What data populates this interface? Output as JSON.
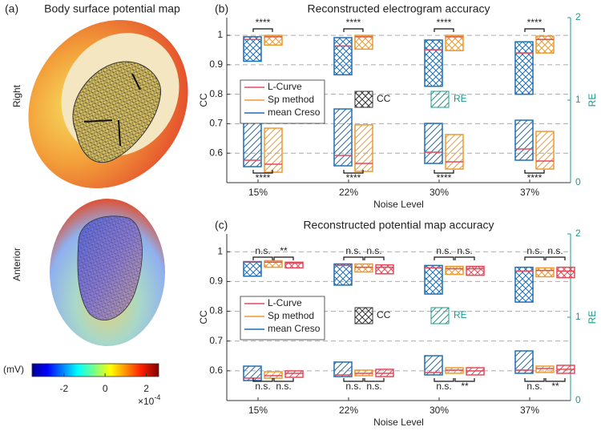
{
  "panel_a": {
    "label": "(a)",
    "title": "Body surface potential map",
    "views": [
      "Right",
      "Anterior"
    ],
    "colorbar": {
      "unit": "(mV)",
      "lim": [
        -3.55,
        2.6
      ],
      "ticks": [
        -2,
        0,
        2
      ],
      "exponent_base": "×10",
      "exponent": "-4"
    }
  },
  "chart_data": [
    {
      "type": "box",
      "label": "(b)",
      "title": "Reconstructed electrogram accuracy",
      "xlabel": "Noise Level",
      "ylabel": "CC",
      "y2label": "RE",
      "categories": [
        "15%",
        "22%",
        "30%",
        "37%"
      ],
      "ylim": [
        0.5,
        1.06
      ],
      "yticks": [
        0.6,
        0.7,
        0.8,
        0.9,
        1
      ],
      "y2lim": [
        0,
        2
      ],
      "y2ticks": [
        0,
        1,
        2
      ],
      "grid": true,
      "hatch_legend": [
        "CC",
        "RE"
      ],
      "series": [
        {
          "name": "L-Curve",
          "color": "#e8485a"
        },
        {
          "name": "Sp method",
          "color": "#ee9a2e",
          "cc_low": [
            0.967,
            0.953,
            0.948,
            0.94
          ],
          "cc_high": [
            1.0,
            1.0,
            1.0,
            0.997
          ],
          "cc_mid": [
            0.995,
            0.995,
            0.995,
            0.986
          ],
          "re_low": [
            0.126,
            0.136,
            0.165,
            0.165
          ],
          "re_high": [
            0.66,
            0.7,
            0.583,
            0.621
          ],
          "re_mid": [
            0.223,
            0.233,
            0.252,
            0.262
          ]
        },
        {
          "name": "mean Creso",
          "color": "#1f6fb5",
          "cc_low": [
            0.912,
            0.866,
            0.827,
            0.8
          ],
          "cc_high": [
            0.995,
            0.992,
            0.984,
            0.978
          ],
          "cc_mid": [
            0.986,
            0.964,
            0.951,
            0.94
          ],
          "re_low": [
            0.194,
            0.204,
            0.233,
            0.272
          ],
          "re_high": [
            0.806,
            0.893,
            0.718,
            0.757
          ],
          "re_mid": [
            0.272,
            0.33,
            0.369,
            0.408
          ]
        }
      ],
      "sig_upper": [
        [
          "****"
        ],
        [
          "****"
        ],
        [
          "****"
        ],
        [
          "****"
        ]
      ],
      "sig_lower": [
        [
          "****"
        ],
        [
          "****"
        ],
        [
          "****"
        ],
        [
          "****"
        ]
      ]
    },
    {
      "type": "box",
      "label": "(c)",
      "title": "Reconstructed potential map accuracy",
      "xlabel": "Noise Level",
      "ylabel": "CC",
      "y2label": "RE",
      "categories": [
        "15%",
        "22%",
        "30%",
        "37%"
      ],
      "ylim": [
        0.5,
        1.06
      ],
      "yticks": [
        0.6,
        0.7,
        0.8,
        0.9,
        1
      ],
      "y2lim": [
        0,
        2
      ],
      "y2ticks": [
        0,
        1,
        2
      ],
      "grid": true,
      "hatch_legend": [
        "CC",
        "RE"
      ],
      "series": [
        {
          "name": "L-Curve",
          "color": "#e8485a",
          "cc_low": [
            0.946,
            0.926,
            0.921,
            0.913
          ],
          "cc_high": [
            0.965,
            0.956,
            0.951,
            0.948
          ],
          "cc_mid": [
            0.962,
            0.948,
            0.943,
            0.935
          ],
          "re_low": [
            0.279,
            0.288,
            0.308,
            0.327
          ],
          "re_high": [
            0.356,
            0.375,
            0.394,
            0.423
          ],
          "re_mid": [
            0.327,
            0.327,
            0.356,
            0.375
          ]
        },
        {
          "name": "Sp method",
          "color": "#ee9a2e",
          "cc_low": [
            0.948,
            0.932,
            0.924,
            0.916
          ],
          "cc_high": [
            0.97,
            0.959,
            0.951,
            0.946
          ],
          "cc_mid": [
            0.965,
            0.948,
            0.943,
            0.937
          ],
          "re_low": [
            0.269,
            0.298,
            0.327,
            0.337
          ],
          "re_high": [
            0.346,
            0.365,
            0.394,
            0.413
          ],
          "re_mid": [
            0.298,
            0.327,
            0.365,
            0.385
          ]
        },
        {
          "name": "mean Creso",
          "color": "#1f6fb5",
          "cc_low": [
            0.918,
            0.888,
            0.858,
            0.831
          ],
          "cc_high": [
            0.967,
            0.959,
            0.954,
            0.948
          ],
          "cc_mid": [
            0.965,
            0.954,
            0.946,
            0.935
          ],
          "re_low": [
            0.24,
            0.288,
            0.308,
            0.327
          ],
          "re_high": [
            0.413,
            0.462,
            0.538,
            0.596
          ],
          "re_mid": [
            0.269,
            0.308,
            0.337,
            0.365
          ]
        }
      ],
      "sig_upper": [
        [
          "n.s.",
          "**"
        ],
        [
          "n.s.",
          "n.s."
        ],
        [
          "n.s.",
          "n.s."
        ],
        [
          "n.s.",
          "n.s."
        ]
      ],
      "sig_lower": [
        [
          "n.s.",
          "n.s."
        ],
        [
          "n.s.",
          "n.s."
        ],
        [
          "n.s.",
          "**"
        ],
        [
          "n.s.",
          "**"
        ]
      ]
    }
  ]
}
